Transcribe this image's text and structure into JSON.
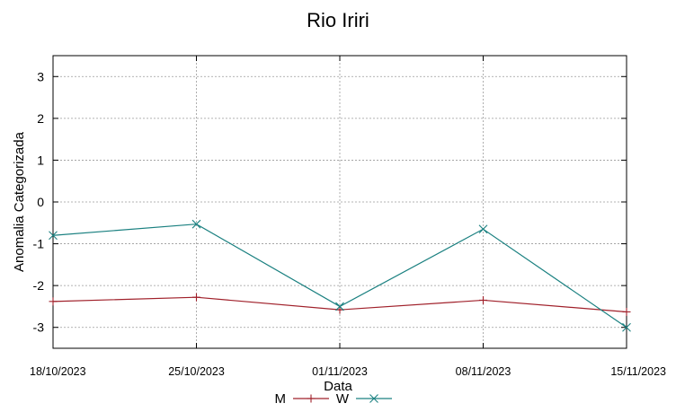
{
  "chart_data": {
    "type": "line",
    "title": "Rio Iriri",
    "xlabel": "Data",
    "ylabel": "Anomalia Categorizada",
    "categories": [
      "18/10/2023",
      "25/10/2023",
      "01/11/2023",
      "08/11/2023",
      "15/11/2023"
    ],
    "yticks": [
      "3",
      "2",
      "1",
      "0",
      "-1",
      "-2",
      "-3"
    ],
    "ylim": [
      -3.5,
      3.5
    ],
    "grid": true,
    "legend_position": "bottom-center",
    "series": [
      {
        "name": "M",
        "color": "#a0202a",
        "marker": "plus",
        "values": [
          -2.38,
          -2.28,
          -2.58,
          -2.35,
          -2.63
        ]
      },
      {
        "name": "W",
        "color": "#1a8080",
        "marker": "x",
        "values": [
          -0.8,
          -0.53,
          -2.5,
          -0.65,
          -3.0
        ]
      }
    ]
  }
}
